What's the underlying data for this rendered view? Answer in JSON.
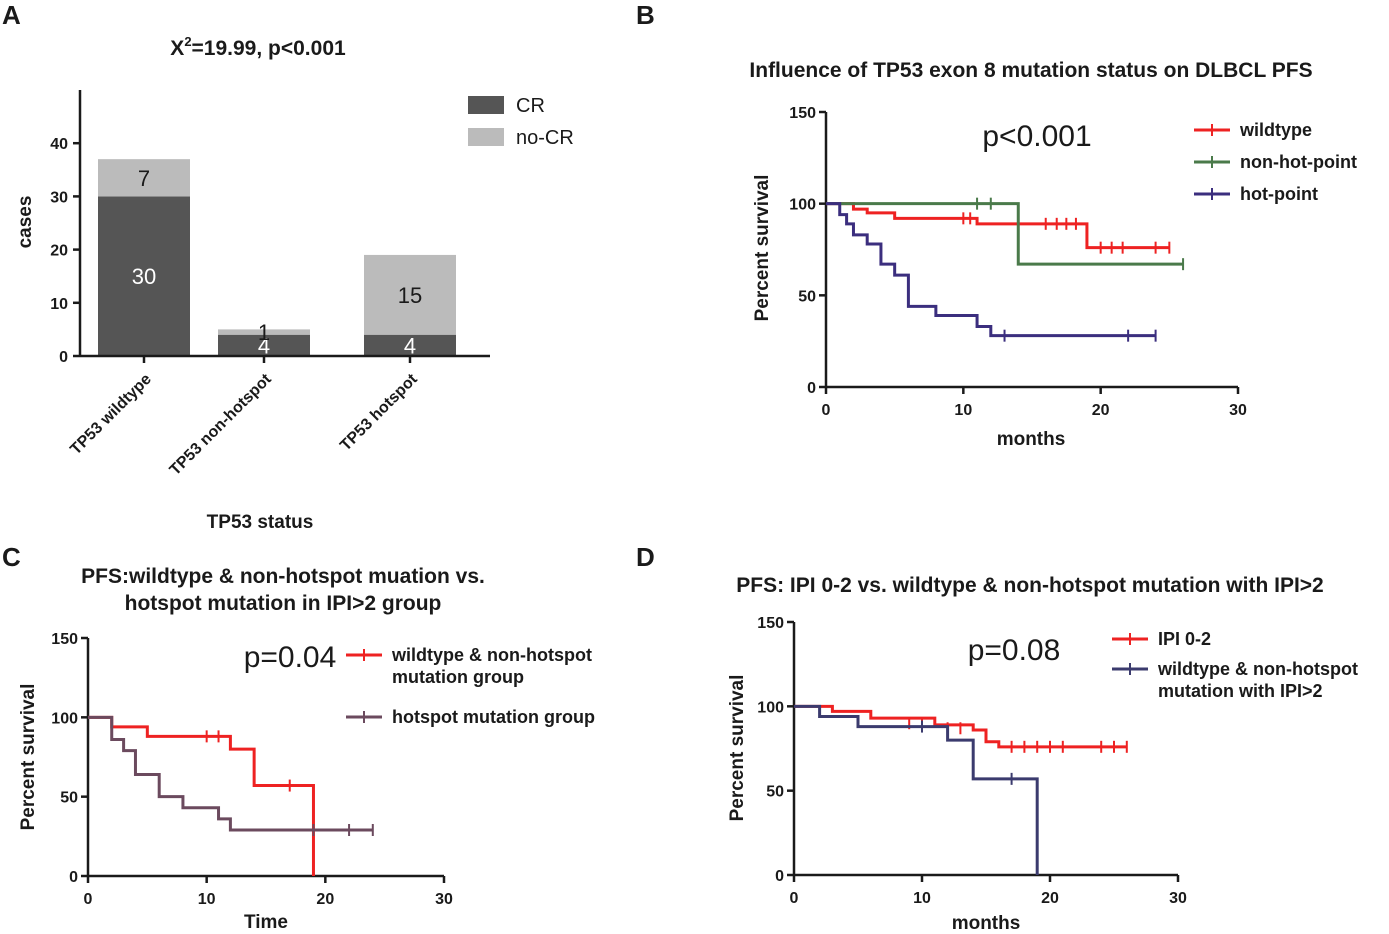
{
  "panel_labels": [
    "A",
    "B",
    "C",
    "D"
  ],
  "chart_data": [
    {
      "type": "bar",
      "panel": "A",
      "title": "X²=19.99, p<0.001",
      "title_parts": {
        "base": "X",
        "sup": "2",
        "rest": "=19.99, p<0.001"
      },
      "xlabel": "TP53 status",
      "ylabel": "cases",
      "ylim": [
        0,
        50
      ],
      "yticks": [
        0,
        10,
        20,
        30,
        40
      ],
      "stacked": true,
      "categories": [
        "TP53 wildtype",
        "TP53 non-hotspot",
        "TP53 hotspot"
      ],
      "series": [
        {
          "name": "CR",
          "values": [
            30,
            4,
            4
          ],
          "color": "#555555",
          "label_color": "#ffffff"
        },
        {
          "name": "no-CR",
          "values": [
            7,
            1,
            15
          ],
          "color": "#bbbbbb",
          "label_color": "#1a1a1a"
        }
      ]
    },
    {
      "type": "line",
      "subtype": "kaplan-meier",
      "panel": "B",
      "title": "Influence of TP53 exon 8 mutation status on DLBCL PFS",
      "xlabel": "months",
      "ylabel": "Percent survival",
      "xlim": [
        0,
        30
      ],
      "ylim": [
        0,
        150
      ],
      "xticks": [
        0,
        10,
        20,
        30
      ],
      "yticks": [
        0,
        50,
        100,
        150
      ],
      "annotation": "p<0.001",
      "series": [
        {
          "name": "wildtype",
          "color": "#ee2222",
          "steps": [
            [
              0,
              100
            ],
            [
              2,
              97
            ],
            [
              3,
              95
            ],
            [
              5,
              92
            ],
            [
              11,
              89
            ],
            [
              19,
              76
            ],
            [
              25,
              76
            ]
          ],
          "censor": [
            [
              10,
              92
            ],
            [
              10.5,
              92
            ],
            [
              16,
              89
            ],
            [
              16.8,
              89
            ],
            [
              17.5,
              89
            ],
            [
              18.2,
              89
            ],
            [
              20,
              76
            ],
            [
              20.8,
              76
            ],
            [
              21.6,
              76
            ],
            [
              24,
              76
            ],
            [
              25,
              76
            ]
          ]
        },
        {
          "name": "non-hot-point",
          "color": "#4a7a4a",
          "steps": [
            [
              0,
              100
            ],
            [
              14,
              67
            ],
            [
              26,
              67
            ]
          ],
          "censor": [
            [
              11,
              100
            ],
            [
              12,
              100
            ],
            [
              26,
              67
            ]
          ]
        },
        {
          "name": "hot-point",
          "color": "#3b2e7e",
          "steps": [
            [
              0,
              100
            ],
            [
              1,
              94
            ],
            [
              1.5,
              89
            ],
            [
              2,
              83
            ],
            [
              3,
              78
            ],
            [
              4,
              67
            ],
            [
              5,
              61
            ],
            [
              6,
              44
            ],
            [
              8,
              39
            ],
            [
              11,
              33
            ],
            [
              12,
              28
            ],
            [
              24,
              28
            ]
          ],
          "censor": [
            [
              13,
              28
            ],
            [
              22,
              28
            ],
            [
              24,
              28
            ]
          ]
        }
      ]
    },
    {
      "type": "line",
      "subtype": "kaplan-meier",
      "panel": "C",
      "title": "PFS:wildtype & non-hotspot muation vs. hotspot mutation in IPI>2 group",
      "title_lines": [
        "PFS:wildtype & non-hotspot muation vs.",
        "hotspot mutation in IPI>2 group"
      ],
      "xlabel": "Time",
      "ylabel": "Percent survival",
      "xlim": [
        0,
        30
      ],
      "ylim": [
        0,
        150
      ],
      "xticks": [
        0,
        10,
        20,
        30
      ],
      "yticks": [
        0,
        50,
        100,
        150
      ],
      "annotation": "p=0.04",
      "series": [
        {
          "name": "wildtype & non-hotspot mutation group",
          "name_lines": [
            "wildtype & non-hotspot",
            "mutation group"
          ],
          "color": "#ee2222",
          "steps": [
            [
              0,
              100
            ],
            [
              2,
              94
            ],
            [
              5,
              88
            ],
            [
              12,
              80
            ],
            [
              14,
              57
            ],
            [
              19,
              0
            ]
          ],
          "censor": [
            [
              10,
              88
            ],
            [
              11,
              88
            ],
            [
              17,
              57
            ]
          ]
        },
        {
          "name": "hotspot mutation group",
          "name_lines": [
            "hotspot mutation group"
          ],
          "color": "#6b4a5e",
          "steps": [
            [
              0,
              100
            ],
            [
              2,
              86
            ],
            [
              3,
              79
            ],
            [
              4,
              64
            ],
            [
              6,
              50
            ],
            [
              8,
              43
            ],
            [
              11,
              36
            ],
            [
              12,
              29
            ],
            [
              24,
              29
            ]
          ],
          "censor": [
            [
              19,
              29
            ],
            [
              22,
              29
            ],
            [
              24,
              29
            ]
          ]
        }
      ]
    },
    {
      "type": "line",
      "subtype": "kaplan-meier",
      "panel": "D",
      "title": "PFS: IPI 0-2 vs. wildtype & non-hotspot mutation with IPI>2",
      "xlabel": "months",
      "ylabel": "Percent survival",
      "xlim": [
        0,
        30
      ],
      "ylim": [
        0,
        150
      ],
      "xticks": [
        0,
        10,
        20,
        30
      ],
      "yticks": [
        0,
        50,
        100,
        150
      ],
      "annotation": "p=0.08",
      "series": [
        {
          "name": "IPI 0-2",
          "name_lines": [
            "IPI 0-2"
          ],
          "color": "#ee2222",
          "steps": [
            [
              0,
              100
            ],
            [
              3,
              97
            ],
            [
              6,
              93
            ],
            [
              11,
              89
            ],
            [
              14,
              86
            ],
            [
              15,
              79
            ],
            [
              16,
              76
            ],
            [
              26,
              76
            ]
          ],
          "censor": [
            [
              9,
              90
            ],
            [
              10,
              90
            ],
            [
              12,
              87
            ],
            [
              13,
              87
            ],
            [
              17,
              76
            ],
            [
              18,
              76
            ],
            [
              19,
              76
            ],
            [
              20,
              76
            ],
            [
              21,
              76
            ],
            [
              24,
              76
            ],
            [
              25,
              76
            ],
            [
              26,
              76
            ]
          ]
        },
        {
          "name": "wildtype & non-hotspot mutation with IPI>2",
          "name_lines": [
            "wildtype & non-hotspot",
            "mutation with IPI>2"
          ],
          "color": "#3b3b6e",
          "steps": [
            [
              0,
              100
            ],
            [
              2,
              94
            ],
            [
              5,
              88
            ],
            [
              12,
              80
            ],
            [
              14,
              57
            ],
            [
              19,
              0
            ]
          ],
          "censor": [
            [
              10,
              88
            ],
            [
              17,
              57
            ]
          ]
        }
      ]
    }
  ]
}
